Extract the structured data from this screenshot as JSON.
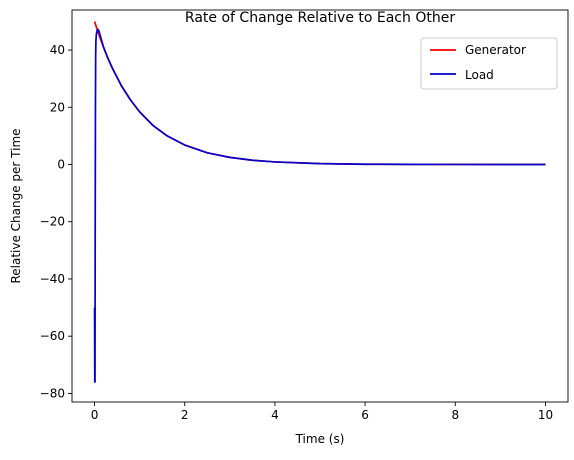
{
  "chart_data": {
    "type": "line",
    "title": "Rate of Change Relative to Each Other",
    "xlabel": "Time (s)",
    "ylabel": "Relative Change per Time",
    "xlim": [
      -0.5,
      10.5
    ],
    "ylim": [
      -83,
      54
    ],
    "xticks": [
      0,
      2,
      4,
      6,
      8,
      10
    ],
    "xtick_labels": [
      "0",
      "2",
      "4",
      "6",
      "8",
      "10"
    ],
    "yticks": [
      -80,
      -60,
      -40,
      -20,
      0,
      20,
      40
    ],
    "ytick_labels": [
      "−80",
      "−60",
      "−40",
      "−20",
      "0",
      "20",
      "40"
    ],
    "grid": false,
    "legend_position": "top-right",
    "series": [
      {
        "name": "Generator",
        "color": "#ff0000",
        "x": [
          0,
          0.1,
          0.2,
          0.3,
          0.4,
          0.6,
          0.8,
          1.0,
          1.3,
          1.6,
          2.0,
          2.5,
          3.0,
          3.5,
          4.0,
          5.0,
          6.0,
          7.0,
          8.0,
          9.0,
          10.0
        ],
        "y": [
          50,
          45.2,
          40.9,
          37.0,
          33.5,
          27.4,
          22.5,
          18.4,
          13.6,
          10.1,
          6.8,
          4.1,
          2.5,
          1.5,
          0.9,
          0.3,
          0.1,
          0.05,
          0.02,
          0.01,
          0.0
        ]
      },
      {
        "name": "Load",
        "color": "#0000cc",
        "x": [
          0,
          0.005,
          0.01,
          0.015,
          0.02,
          0.025,
          0.03,
          0.04,
          0.06,
          0.08,
          0.1,
          0.2,
          0.3,
          0.4,
          0.6,
          0.8,
          1.0,
          1.3,
          1.6,
          2.0,
          2.5,
          3.0,
          3.5,
          4.0,
          5.0,
          6.0,
          7.0,
          8.0,
          9.0,
          10.0
        ],
        "y": [
          -50,
          -76,
          -76,
          -20,
          20,
          38,
          43,
          45.5,
          47.0,
          47.2,
          46.5,
          41.0,
          37.0,
          33.5,
          27.4,
          22.5,
          18.4,
          13.6,
          10.1,
          6.8,
          4.1,
          2.5,
          1.5,
          0.9,
          0.3,
          0.1,
          0.05,
          0.02,
          0.01,
          0.0
        ]
      }
    ]
  }
}
